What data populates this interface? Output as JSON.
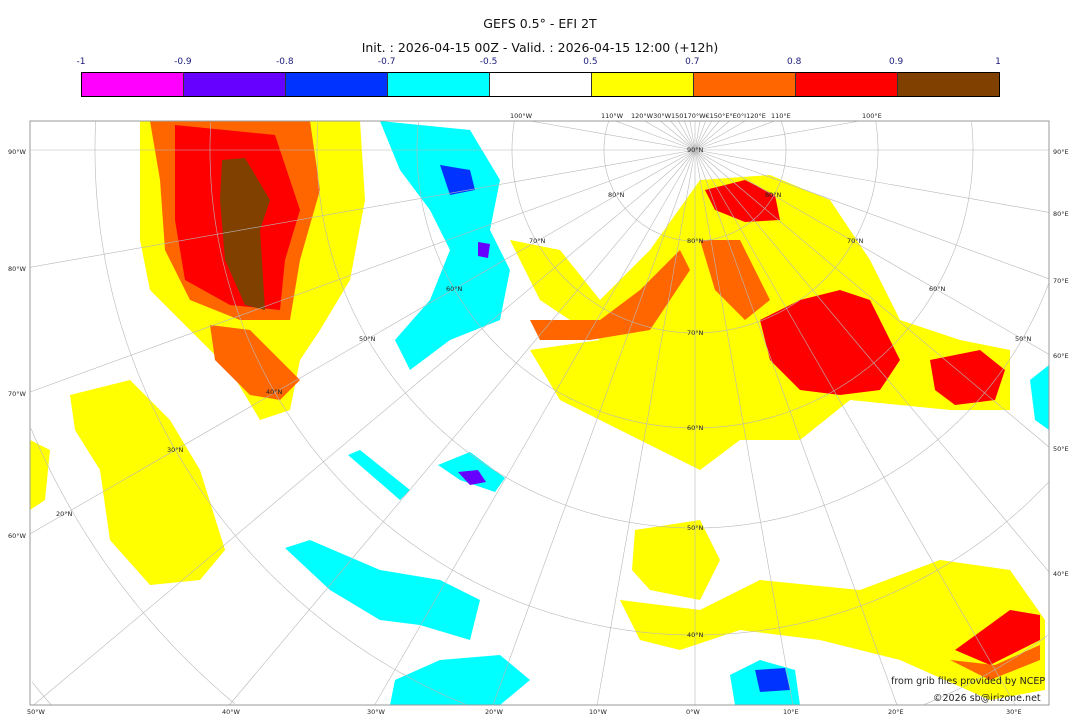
{
  "header": {
    "title": "GEFS 0.5° - EFI 2T",
    "subtitle": "Init. : 2026-04-15 00Z - Valid. : 2026-04-15 12:00 (+12h)"
  },
  "colorbar": {
    "ticks": [
      "-1",
      "-0.9",
      "-0.8",
      "-0.7",
      "-0.5",
      "0.5",
      "0.7",
      "0.8",
      "0.9",
      "1"
    ],
    "colors": [
      "#ff00ff",
      "#6600ff",
      "#0033ff",
      "#00ffff",
      "#ffffff",
      "#ffff00",
      "#ff6600",
      "#ff0000",
      "#804000"
    ]
  },
  "map": {
    "projection": "polar stereographic",
    "left_labels": [
      "90°W",
      "80°W",
      "70°W",
      "60°W"
    ],
    "right_labels": [
      "90°E",
      "80°E",
      "70°E",
      "60°E",
      "50°E",
      "40°E"
    ],
    "bottom_labels": [
      "50°W",
      "40°W",
      "30°W",
      "20°W",
      "10°W",
      "0°W",
      "10°E",
      "20°E",
      "30°E"
    ],
    "top_labels": [
      "100°W",
      "110°W",
      "120°W30°W150170°W€150°E°E0°I120°E",
      "110°E",
      "100°E"
    ],
    "lat_labels_center": [
      "90°N",
      "80°N",
      "70°N",
      "60°N",
      "50°N",
      "40°N"
    ],
    "lat_labels_west": [
      "80°N",
      "70°N",
      "60°N",
      "50°N",
      "40°N",
      "30°N",
      "20°N"
    ],
    "lat_labels_east": [
      "80°N",
      "70°N",
      "60°N",
      "50°N"
    ]
  },
  "credits": {
    "source": "from grib files provided by NCEP",
    "copyright": "©2026 sb@irizone.net"
  }
}
